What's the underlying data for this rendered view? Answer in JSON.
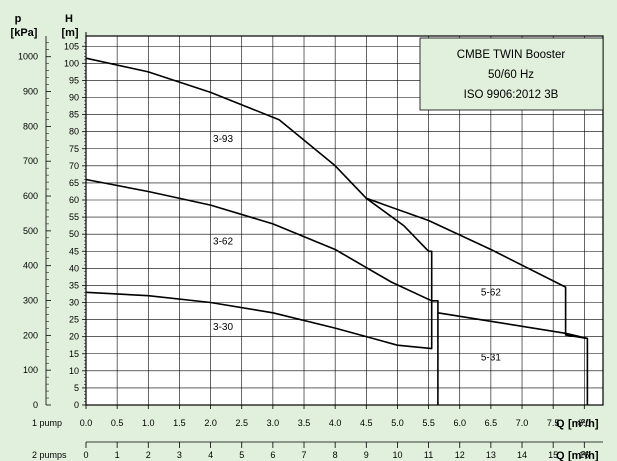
{
  "chart_data": {
    "type": "line",
    "legend_box_lines": [
      "CMBE TWIN Booster",
      "50/60 Hz",
      "ISO 9906:2012 3B"
    ],
    "axis_labels": {
      "p_symbol": "p",
      "p_unit": "[kPa]",
      "h_symbol": "H",
      "h_unit": "[m]",
      "q1_prefix": "1 pump",
      "q2_prefix": "2 pumps",
      "q_symbol": "Q",
      "q_unit": "[m³/h]"
    },
    "h_range": [
      0,
      108
    ],
    "h_ticks": [
      0,
      5,
      10,
      15,
      20,
      25,
      30,
      35,
      40,
      45,
      50,
      55,
      60,
      65,
      70,
      75,
      80,
      85,
      90,
      95,
      100,
      105
    ],
    "p_ticks": [
      0,
      100,
      200,
      300,
      400,
      500,
      600,
      700,
      800,
      900,
      1000
    ],
    "q1_range": [
      0,
      8.3
    ],
    "q1_ticks": [
      "0.0",
      "0.5",
      "1.0",
      "1.5",
      "2.0",
      "2.5",
      "3.0",
      "3.5",
      "4.0",
      "4.5",
      "5.0",
      "5.5",
      "6.0",
      "6.5",
      "7.0",
      "7.5",
      "8.0"
    ],
    "q2_ticks": [
      "0",
      "1",
      "2",
      "3",
      "4",
      "5",
      "6",
      "7",
      "8",
      "9",
      "10",
      "11",
      "12",
      "13",
      "14",
      "15",
      "16"
    ],
    "series": [
      {
        "name": "3-93",
        "label_at": [
          2.2,
          77
        ],
        "points": [
          [
            0,
            101.5
          ],
          [
            1,
            97.5
          ],
          [
            2,
            91.5
          ],
          [
            3.1,
            83.5
          ],
          [
            4,
            70
          ],
          [
            4.5,
            60.5
          ],
          [
            5.1,
            52.5
          ],
          [
            5.5,
            45
          ],
          [
            5.55,
            45
          ],
          [
            5.55,
            30
          ]
        ]
      },
      {
        "name": "3-62",
        "label_at": [
          2.2,
          47
        ],
        "points": [
          [
            0,
            66
          ],
          [
            1,
            62.5
          ],
          [
            2,
            58.5
          ],
          [
            3,
            53
          ],
          [
            4,
            45.5
          ],
          [
            4.9,
            36
          ],
          [
            5.55,
            30.5
          ],
          [
            5.65,
            30.5
          ],
          [
            5.65,
            0
          ]
        ]
      },
      {
        "name": "3-30",
        "label_at": [
          2.2,
          22
        ],
        "points": [
          [
            0,
            33
          ],
          [
            1,
            32
          ],
          [
            2,
            30
          ],
          [
            3,
            27
          ],
          [
            4,
            22.5
          ],
          [
            5,
            17.5
          ],
          [
            5.55,
            16.5
          ],
          [
            5.55,
            30.5
          ]
        ]
      },
      {
        "name": "5-62",
        "label_at": [
          6.5,
          32
        ],
        "points": [
          [
            4.5,
            60.5
          ],
          [
            5.5,
            54
          ],
          [
            6.5,
            45.5
          ],
          [
            7.7,
            34.5
          ],
          [
            7.7,
            20.5
          ],
          [
            8.05,
            19.5
          ],
          [
            8.05,
            0
          ]
        ]
      },
      {
        "name": "5-31",
        "label_at": [
          6.5,
          13
        ],
        "points": [
          [
            5.65,
            27
          ],
          [
            6.5,
            24.5
          ],
          [
            7.7,
            21
          ],
          [
            8.05,
            19.5
          ]
        ]
      }
    ]
  }
}
